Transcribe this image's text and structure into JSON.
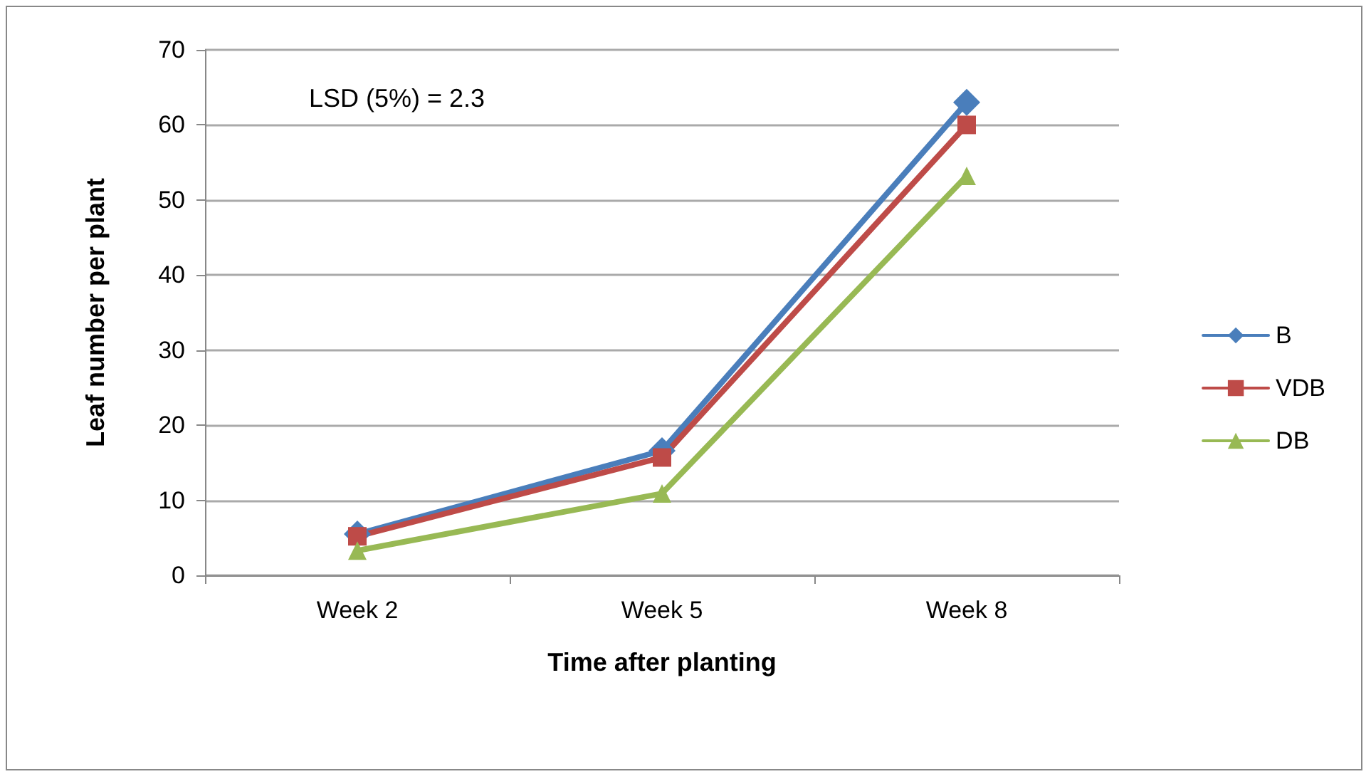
{
  "chart_data": {
    "type": "line",
    "xlabel": "Time after planting",
    "ylabel": "Leaf number per plant",
    "categories": [
      "Week 2",
      "Week 5",
      "Week 8"
    ],
    "series": [
      {
        "name": "B",
        "color": "#4a7ebb",
        "marker": "diamond",
        "values": [
          5.5,
          16.6,
          63
        ]
      },
      {
        "name": "VDB",
        "color": "#be4b48",
        "marker": "square",
        "values": [
          5.2,
          15.7,
          60
        ]
      },
      {
        "name": "DB",
        "color": "#98b954",
        "marker": "triangle",
        "values": [
          3.3,
          10.9,
          53.2
        ]
      }
    ],
    "ylim": [
      0,
      70
    ],
    "yticks": [
      0,
      10,
      20,
      30,
      40,
      50,
      60,
      70
    ],
    "grid": "y",
    "legend": "right",
    "annotations": [
      "LSD (5%) = 2.3"
    ]
  }
}
